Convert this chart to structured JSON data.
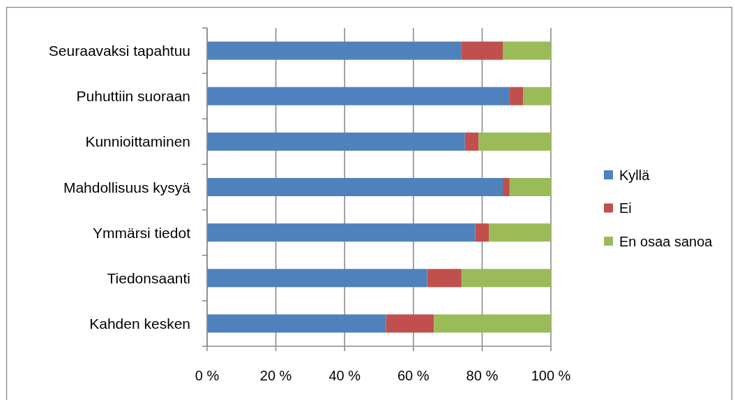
{
  "chart_data": {
    "type": "bar",
    "orientation": "horizontal",
    "stacked": true,
    "categories": [
      "Seuraavaksi tapahtuu",
      "Puhuttiin suoraan",
      "Kunnioittaminen",
      "Mahdollisuus kysyä",
      "Ymmärsi tiedot",
      "Tiedonsaanti",
      "Kahden kesken"
    ],
    "series": [
      {
        "name": "Kyllä",
        "color": "#4f81bd",
        "values": [
          74,
          88,
          75,
          86,
          78,
          64,
          52
        ]
      },
      {
        "name": "Ei",
        "color": "#c0504d",
        "values": [
          12,
          4,
          4,
          2,
          4,
          10,
          14
        ]
      },
      {
        "name": "En osaa sanoa",
        "color": "#9bbb59",
        "values": [
          14,
          8,
          21,
          12,
          18,
          26,
          34
        ]
      }
    ],
    "xlim": [
      0,
      100
    ],
    "xticks": [
      {
        "value": 0,
        "label": "0 %"
      },
      {
        "value": 20,
        "label": "20 %"
      },
      {
        "value": 40,
        "label": "40 %"
      },
      {
        "value": 60,
        "label": "60 %"
      },
      {
        "value": 80,
        "label": "80 %"
      },
      {
        "value": 100,
        "label": "100 %"
      }
    ],
    "grid": "x",
    "legend": "right"
  }
}
